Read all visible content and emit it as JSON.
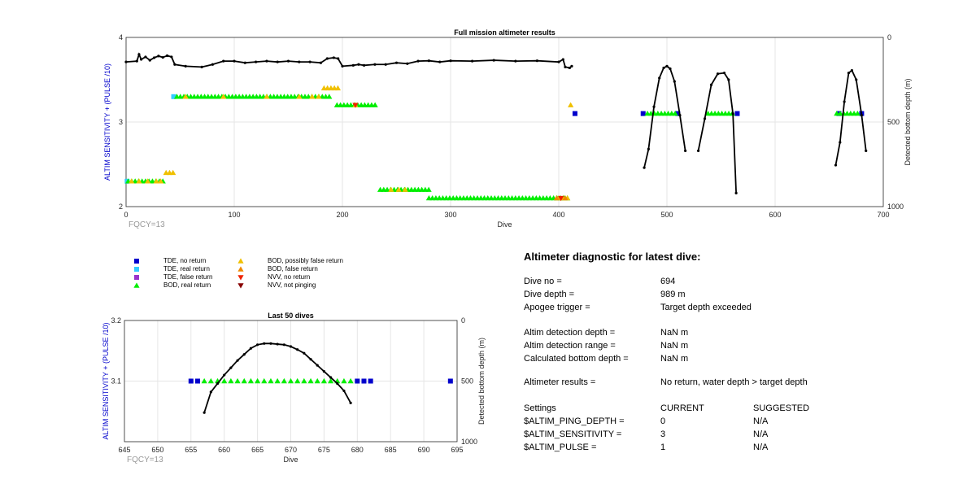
{
  "chart_data": [
    {
      "type": "scatter",
      "title": "Full mission altimeter results",
      "xlabel": "Dive",
      "ylabel": "ALTIM SENSITIVITY + (PULSE /10)",
      "y2label": "Detected bottom depth (m)",
      "xlim": [
        0,
        700
      ],
      "ylim": [
        2,
        4
      ],
      "y2lim": [
        0,
        1000
      ],
      "y2_reversed": true,
      "grid": true,
      "xticks": [
        0,
        100,
        200,
        300,
        400,
        500,
        600,
        700
      ],
      "yticks": [
        2,
        3,
        4
      ],
      "y2ticks": [
        0,
        500,
        1000
      ],
      "note": "FQCY=13",
      "series": [
        {
          "name": "TDE, no return",
          "marker": "square",
          "color": "#0000cc",
          "points": [
            [
              415,
              3.1
            ],
            [
              478,
              3.1
            ],
            [
              510,
              3.1
            ],
            [
              565,
              3.1
            ],
            [
              659,
              3.1
            ],
            [
              680,
              3.1
            ]
          ]
        },
        {
          "name": "TDE, real return",
          "marker": "square",
          "color": "#33ccff",
          "points": [
            [
              1,
              2.3
            ],
            [
              44,
              3.3
            ]
          ]
        },
        {
          "name": "BOD, real return",
          "marker": "triangle-up",
          "color": "#00ee00",
          "ranges": [
            [
              2,
              36,
              2.3
            ],
            [
              47,
              188,
              3.3
            ],
            [
              195,
              232,
              3.2
            ],
            [
              235,
              280,
              2.2
            ],
            [
              280,
              410,
              2.1
            ],
            [
              482,
              510,
              3.1
            ],
            [
              538,
              562,
              3.1
            ],
            [
              657,
              679,
              3.1
            ]
          ]
        },
        {
          "name": "BOD, possibly false return",
          "marker": "triangle-up",
          "color": "#f0c000",
          "ranges": [
            [
              37,
              44,
              2.4
            ],
            [
              183,
              197,
              3.4
            ]
          ],
          "points": [
            [
              5,
              2.3
            ],
            [
              12,
              2.3
            ],
            [
              20,
              2.3
            ],
            [
              28,
              2.3
            ],
            [
              32,
              2.3
            ],
            [
              55,
              3.3
            ],
            [
              90,
              3.3
            ],
            [
              130,
              3.3
            ],
            [
              160,
              3.3
            ],
            [
              172,
              3.3
            ],
            [
              178,
              3.3
            ],
            [
              212,
              3.2
            ],
            [
              245,
              2.2
            ],
            [
              252,
              2.2
            ],
            [
              258,
              2.2
            ],
            [
              400,
              2.1
            ],
            [
              404,
              2.1
            ],
            [
              408,
              2.1
            ],
            [
              411,
              3.2
            ]
          ]
        },
        {
          "name": "BOD, false return",
          "marker": "triangle-up",
          "color": "#ee8800",
          "points": [
            [
              398,
              2.1
            ],
            [
              406,
              2.1
            ]
          ]
        },
        {
          "name": "NVV, no return",
          "marker": "triangle-down",
          "color": "#ee2200",
          "points": [
            [
              212,
              3.2
            ],
            [
              402,
              2.1
            ]
          ]
        },
        {
          "name": "bottom depth",
          "marker": "dot-line",
          "color": "#000000",
          "axis": "y2",
          "segments": [
            [
              [
                0,
                145
              ],
              [
                10,
                140
              ],
              [
                12,
                100
              ],
              [
                14,
                130
              ],
              [
                18,
                115
              ],
              [
                22,
                135
              ],
              [
                26,
                120
              ],
              [
                30,
                110
              ],
              [
                34,
                118
              ],
              [
                38,
                108
              ],
              [
                42,
                115
              ],
              [
                45,
                160
              ],
              [
                55,
                170
              ],
              [
                70,
                175
              ],
              [
                80,
                160
              ],
              [
                90,
                140
              ],
              [
                100,
                140
              ],
              [
                110,
                150
              ],
              [
                120,
                145
              ],
              [
                130,
                140
              ],
              [
                140,
                145
              ],
              [
                150,
                140
              ],
              [
                160,
                145
              ],
              [
                170,
                145
              ],
              [
                180,
                150
              ],
              [
                186,
                125
              ],
              [
                192,
                120
              ],
              [
                196,
                125
              ],
              [
                200,
                170
              ],
              [
                210,
                165
              ],
              [
                215,
                160
              ],
              [
                220,
                165
              ],
              [
                230,
                160
              ],
              [
                240,
                160
              ],
              [
                250,
                150
              ],
              [
                260,
                155
              ],
              [
                270,
                140
              ],
              [
                280,
                138
              ],
              [
                290,
                145
              ],
              [
                300,
                138
              ],
              [
                320,
                140
              ],
              [
                340,
                135
              ],
              [
                360,
                140
              ],
              [
                380,
                138
              ],
              [
                400,
                145
              ],
              [
                404,
                130
              ],
              [
                406,
                175
              ],
              [
                410,
                180
              ],
              [
                412,
                170
              ]
            ],
            [
              [
                479,
                770
              ],
              [
                483,
                660
              ],
              [
                488,
                410
              ],
              [
                493,
                240
              ],
              [
                497,
                180
              ],
              [
                500,
                170
              ],
              [
                503,
                185
              ],
              [
                507,
                260
              ],
              [
                512,
                460
              ],
              [
                517,
                670
              ]
            ],
            [
              [
                529,
                670
              ],
              [
                535,
                480
              ],
              [
                541,
                280
              ],
              [
                547,
                215
              ],
              [
                553,
                210
              ],
              [
                557,
                250
              ],
              [
                561,
                450
              ],
              [
                564,
                920
              ]
            ],
            [
              [
                656,
                755
              ],
              [
                660,
                620
              ],
              [
                664,
                380
              ],
              [
                668,
                210
              ],
              [
                671,
                195
              ],
              [
                675,
                250
              ],
              [
                680,
                460
              ],
              [
                684,
                670
              ]
            ]
          ]
        }
      ]
    },
    {
      "type": "scatter",
      "title": "Last 50 dives",
      "xlabel": "Dive",
      "ylabel": "ALTIM SENSITIVITY + (PULSE /10)",
      "y2label": "Detected bottom depth (m)",
      "xlim": [
        645,
        695
      ],
      "ylim": [
        3.0,
        3.2
      ],
      "y2lim": [
        0,
        1000
      ],
      "y2_reversed": true,
      "grid": true,
      "xticks": [
        645,
        650,
        655,
        660,
        665,
        670,
        675,
        680,
        685,
        690,
        695
      ],
      "yticks": [
        3.1,
        3.2
      ],
      "y2ticks": [
        0,
        500,
        1000
      ],
      "note": "FQCY=13",
      "series": [
        {
          "name": "TDE, no return",
          "marker": "square",
          "color": "#0000cc",
          "points": [
            [
              655,
              3.1
            ],
            [
              656,
              3.1
            ],
            [
              680,
              3.1
            ],
            [
              681,
              3.1
            ],
            [
              682,
              3.1
            ],
            [
              694,
              3.1
            ]
          ]
        },
        {
          "name": "BOD, real return",
          "marker": "triangle-up",
          "color": "#00ee00",
          "points": [
            [
              657,
              3.1
            ],
            [
              658,
              3.1
            ],
            [
              659,
              3.1
            ],
            [
              660,
              3.1
            ],
            [
              661,
              3.1
            ],
            [
              662,
              3.1
            ],
            [
              663,
              3.1
            ],
            [
              664,
              3.1
            ],
            [
              665,
              3.1
            ],
            [
              666,
              3.1
            ],
            [
              667,
              3.1
            ],
            [
              668,
              3.1
            ],
            [
              669,
              3.1
            ],
            [
              670,
              3.1
            ],
            [
              671,
              3.1
            ],
            [
              672,
              3.1
            ],
            [
              673,
              3.1
            ],
            [
              674,
              3.1
            ],
            [
              675,
              3.1
            ],
            [
              676,
              3.1
            ],
            [
              677,
              3.1
            ],
            [
              678,
              3.1
            ],
            [
              679,
              3.1
            ]
          ]
        },
        {
          "name": "bottom depth",
          "marker": "dot-line",
          "color": "#000000",
          "axis": "y2",
          "segments": [
            [
              [
                657,
                760
              ],
              [
                658,
                590
              ],
              [
                659,
                520
              ],
              [
                660,
                450
              ],
              [
                661,
                390
              ],
              [
                662,
                330
              ],
              [
                663,
                280
              ],
              [
                664,
                230
              ],
              [
                665,
                200
              ],
              [
                666,
                190
              ],
              [
                667,
                190
              ],
              [
                668,
                195
              ],
              [
                669,
                200
              ],
              [
                670,
                215
              ],
              [
                671,
                240
              ],
              [
                672,
                270
              ],
              [
                673,
                320
              ],
              [
                674,
                370
              ],
              [
                675,
                420
              ],
              [
                676,
                470
              ],
              [
                677,
                520
              ],
              [
                678,
                580
              ],
              [
                679,
                680
              ]
            ]
          ]
        }
      ]
    }
  ],
  "legend": [
    {
      "label": "TDE, no return",
      "marker": "square",
      "color": "#0000cc"
    },
    {
      "label": "TDE, real return",
      "marker": "square",
      "color": "#33ccff"
    },
    {
      "label": "TDE, false return",
      "marker": "square",
      "color": "#9933cc"
    },
    {
      "label": "BOD, real return",
      "marker": "triangle-up",
      "color": "#00ee00"
    },
    {
      "label": "BOD, possibly false return",
      "marker": "triangle-up",
      "color": "#f0c000"
    },
    {
      "label": "BOD, false return",
      "marker": "triangle-up",
      "color": "#ee8800"
    },
    {
      "label": "NVV, no return",
      "marker": "triangle-down",
      "color": "#ee2200"
    },
    {
      "label": "NVV, not pinging",
      "marker": "triangle-down",
      "color": "#880000"
    }
  ],
  "diagnostic": {
    "title": "Altimeter diagnostic for latest dive:",
    "rows": [
      {
        "label": "Dive no =",
        "value": "694"
      },
      {
        "label": "Dive depth =",
        "value": "989 m"
      },
      {
        "label": "Apogee trigger =",
        "value": "Target depth exceeded"
      },
      {
        "label": "Altim detection depth =",
        "value": "NaN m"
      },
      {
        "label": "Altim detection range =",
        "value": "NaN m"
      },
      {
        "label": "Calculated bottom depth =",
        "value": "NaN m"
      },
      {
        "label": "Altimeter results =",
        "value": "No return, water depth > target depth"
      }
    ],
    "settings_header": {
      "label": "Settings",
      "current": "CURRENT",
      "suggested": "SUGGESTED"
    },
    "settings": [
      {
        "label": "$ALTIM_PING_DEPTH =",
        "current": "0",
        "suggested": "N/A"
      },
      {
        "label": "$ALTIM_SENSITIVITY =",
        "current": "3",
        "suggested": "N/A"
      },
      {
        "label": "$ALTIM_PULSE =",
        "current": "1",
        "suggested": "N/A"
      }
    ]
  },
  "colors": {
    "axis_label": "#0000cc",
    "grid": "#e6e6e6",
    "note": "#999999"
  }
}
